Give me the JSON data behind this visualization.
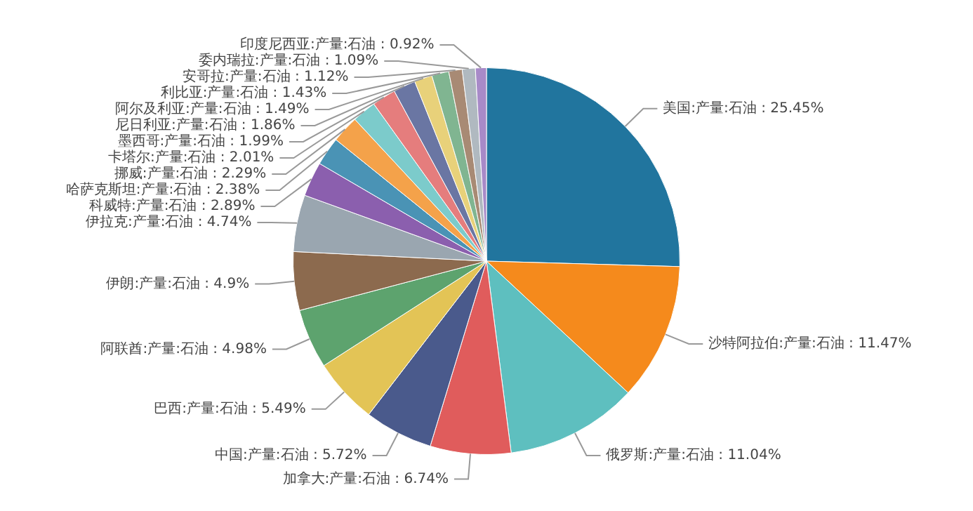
{
  "chart_data": {
    "type": "pie",
    "categories": [
      "美国:产量:石油",
      "沙特阿拉伯:产量:石油",
      "俄罗斯:产量:石油",
      "加拿大:产量:石油",
      "中国:产量:石油",
      "巴西:产量:石油",
      "阿联酋:产量:石油",
      "伊朗:产量:石油",
      "伊拉克:产量:石油",
      "科威特:产量:石油",
      "哈萨克斯坦:产量:石油",
      "挪威:产量:石油",
      "卡塔尔:产量:石油",
      "墨西哥:产量:石油",
      "尼日利亚:产量:石油",
      "阿尔及利亚:产量:石油",
      "利比亚:产量:石油",
      "安哥拉:产量:石油",
      "委内瑞拉:产量:石油",
      "印度尼西亚:产量:石油"
    ],
    "values": [
      25.45,
      11.47,
      11.04,
      6.74,
      5.72,
      5.49,
      4.98,
      4.9,
      4.74,
      2.89,
      2.38,
      2.29,
      2.01,
      1.99,
      1.86,
      1.49,
      1.43,
      1.12,
      1.09,
      0.92
    ],
    "value_labels": [
      "25.45%",
      "11.47%",
      "11.04%",
      "6.74%",
      "5.72%",
      "5.49%",
      "4.98%",
      "4.9%",
      "4.74%",
      "2.89%",
      "2.38%",
      "2.29%",
      "2.01%",
      "1.99%",
      "1.86%",
      "1.49%",
      "1.43%",
      "1.12%",
      "1.09%",
      "0.92%"
    ],
    "colors": [
      "#21759e",
      "#f58a1c",
      "#5ebfbf",
      "#e05c5c",
      "#4a5a8c",
      "#e3c456",
      "#5da36e",
      "#8c6a4e",
      "#9aa6b0",
      "#8b5fae",
      "#4a93b5",
      "#f4a24a",
      "#7ccbcb",
      "#e57d7d",
      "#6a76a3",
      "#e8d17a",
      "#80b591",
      "#a88a74",
      "#b0b9c0",
      "#a88ac8"
    ],
    "legend": false
  }
}
